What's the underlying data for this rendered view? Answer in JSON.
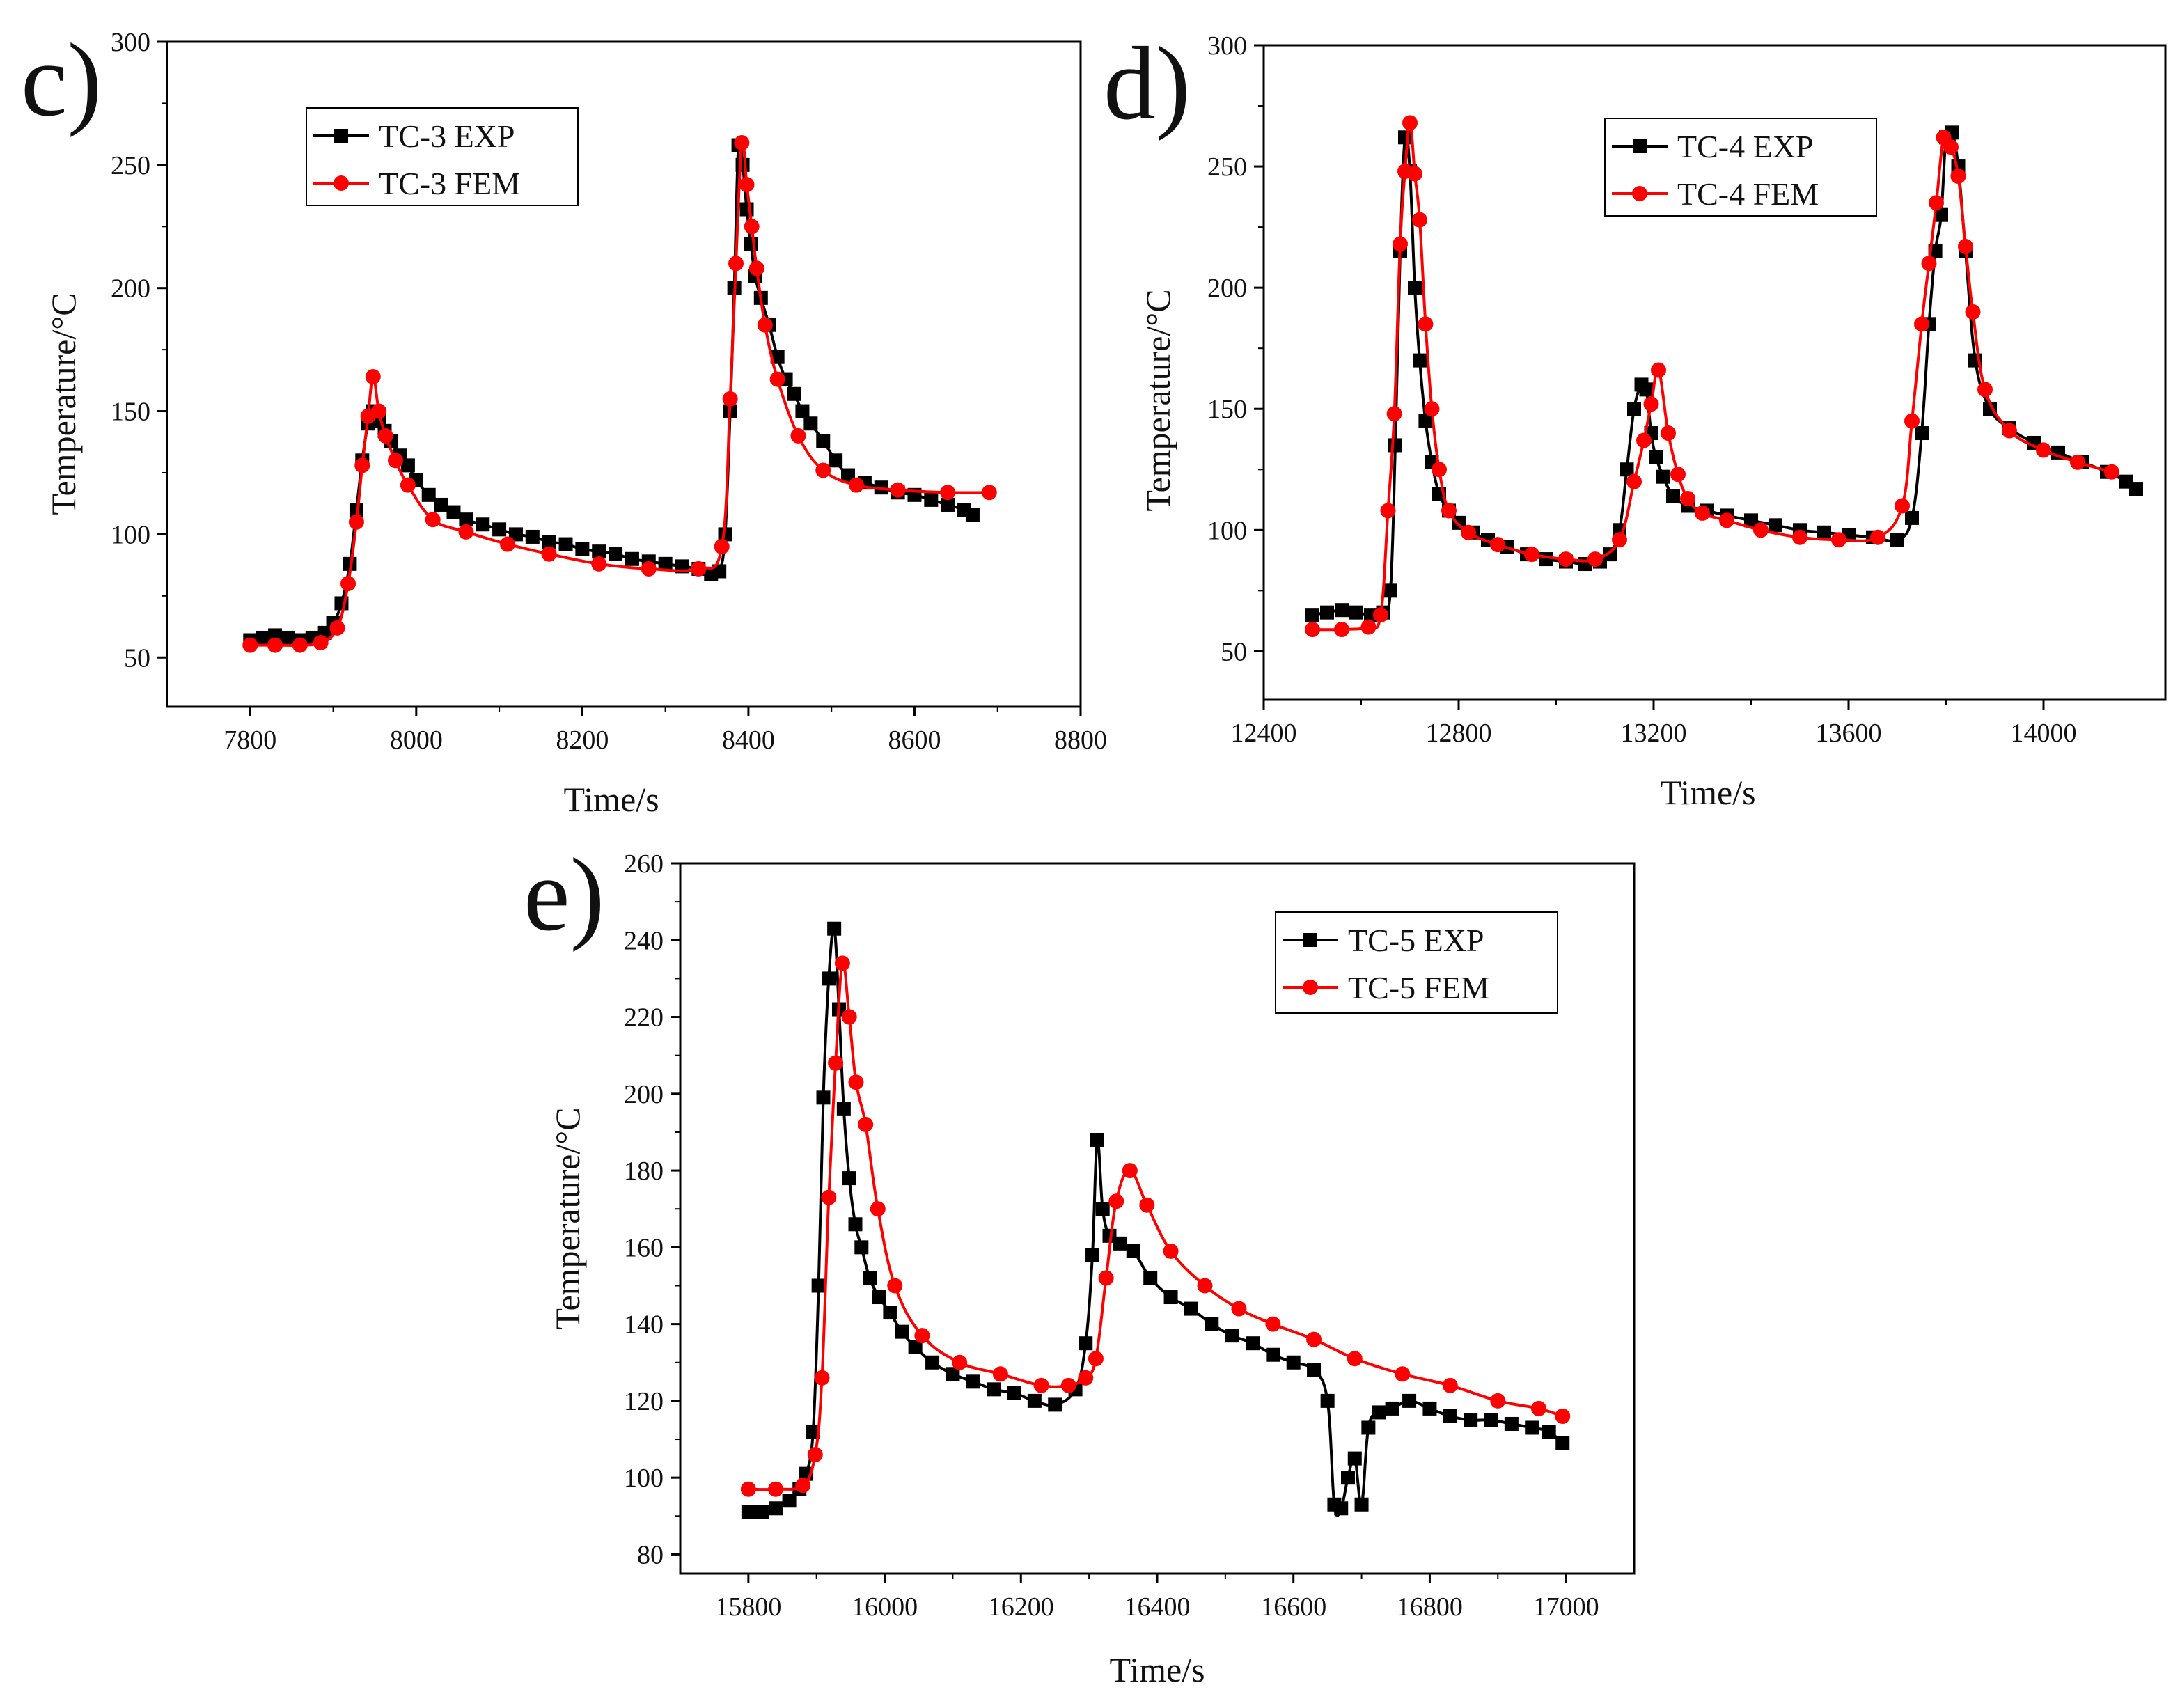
{
  "chart_data": [
    {
      "type": "line",
      "panel_label": "c)",
      "xlabel": "Time/s",
      "ylabel": "Temperature/°C",
      "xlim": [
        7700,
        8800
      ],
      "ylim": [
        30,
        300
      ],
      "xticks": [
        7800,
        8000,
        8200,
        8400,
        8600,
        8800
      ],
      "yticks": [
        50,
        100,
        150,
        200,
        250,
        300
      ],
      "legend_position": "top-left",
      "series": [
        {
          "name": "TC-3 EXP",
          "color": "#000000",
          "marker": "square",
          "x": [
            7800,
            7815,
            7830,
            7845,
            7860,
            7875,
            7890,
            7900,
            7910,
            7920,
            7928,
            7935,
            7942,
            7948,
            7955,
            7962,
            7970,
            7980,
            7990,
            8000,
            8015,
            8030,
            8045,
            8060,
            8080,
            8100,
            8120,
            8140,
            8160,
            8180,
            8200,
            8220,
            8240,
            8260,
            8280,
            8300,
            8320,
            8340,
            8355,
            8365,
            8372,
            8378,
            8383,
            8388,
            8393,
            8398,
            8403,
            8408,
            8415,
            8425,
            8435,
            8445,
            8455,
            8465,
            8475,
            8490,
            8505,
            8520,
            8540,
            8560,
            8580,
            8600,
            8620,
            8640,
            8660,
            8670
          ],
          "y": [
            57,
            58,
            59,
            58,
            57,
            58,
            60,
            64,
            72,
            88,
            110,
            130,
            145,
            150,
            146,
            142,
            138,
            132,
            128,
            122,
            116,
            112,
            109,
            106,
            104,
            102,
            100,
            99,
            97,
            96,
            94,
            93,
            92,
            90,
            89,
            88,
            87,
            86,
            84,
            85,
            100,
            150,
            200,
            258,
            250,
            232,
            218,
            205,
            196,
            185,
            172,
            163,
            157,
            150,
            145,
            138,
            130,
            124,
            121,
            119,
            117,
            116,
            114,
            112,
            110,
            108
          ]
        },
        {
          "name": "TC-3 FEM",
          "color": "#ff0000",
          "marker": "circle",
          "x": [
            7800,
            7830,
            7860,
            7885,
            7905,
            7918,
            7928,
            7935,
            7942,
            7948,
            7955,
            7963,
            7975,
            7990,
            8020,
            8060,
            8110,
            8160,
            8220,
            8280,
            8340,
            8368,
            8378,
            8385,
            8392,
            8398,
            8404,
            8410,
            8420,
            8435,
            8460,
            8490,
            8530,
            8580,
            8640,
            8690
          ],
          "y": [
            55,
            55,
            55,
            56,
            62,
            80,
            105,
            128,
            148,
            164,
            150,
            140,
            130,
            120,
            106,
            101,
            96,
            92,
            88,
            86,
            86,
            95,
            155,
            210,
            259,
            242,
            225,
            208,
            185,
            163,
            140,
            126,
            120,
            118,
            117,
            117
          ]
        }
      ]
    },
    {
      "type": "line",
      "panel_label": "d)",
      "xlabel": "Time/s",
      "ylabel": "Temperature/°C",
      "xlim": [
        12400,
        14250
      ],
      "ylim": [
        30,
        300
      ],
      "xticks": [
        12400,
        12800,
        13200,
        13600,
        14000
      ],
      "yticks": [
        50,
        100,
        150,
        200,
        250,
        300
      ],
      "legend_position": "top-right",
      "series": [
        {
          "name": "TC-4 EXP",
          "color": "#000000",
          "marker": "square",
          "x": [
            12500,
            12530,
            12560,
            12590,
            12620,
            12645,
            12660,
            12670,
            12680,
            12690,
            12700,
            12710,
            12720,
            12732,
            12745,
            12760,
            12780,
            12800,
            12830,
            12860,
            12900,
            12940,
            12980,
            13020,
            13060,
            13090,
            13110,
            13130,
            13145,
            13160,
            13175,
            13185,
            13195,
            13205,
            13220,
            13240,
            13270,
            13310,
            13350,
            13400,
            13450,
            13500,
            13550,
            13600,
            13650,
            13700,
            13730,
            13750,
            13765,
            13778,
            13790,
            13800,
            13812,
            13825,
            13840,
            13860,
            13890,
            13930,
            13980,
            14030,
            14080,
            14130,
            14170,
            14190
          ],
          "y": [
            65,
            66,
            67,
            66,
            65,
            66,
            75,
            135,
            215,
            262,
            248,
            200,
            170,
            145,
            128,
            115,
            108,
            103,
            99,
            96,
            93,
            90,
            88,
            87,
            86,
            87,
            90,
            100,
            125,
            150,
            160,
            158,
            140,
            130,
            122,
            114,
            110,
            108,
            106,
            104,
            102,
            100,
            99,
            98,
            97,
            96,
            105,
            140,
            185,
            215,
            230,
            262,
            264,
            250,
            215,
            170,
            150,
            142,
            136,
            132,
            128,
            124,
            120,
            117
          ]
        },
        {
          "name": "TC-4 FEM",
          "color": "#ff0000",
          "marker": "circle",
          "x": [
            12500,
            12560,
            12615,
            12640,
            12655,
            12668,
            12680,
            12690,
            12700,
            12710,
            12720,
            12732,
            12745,
            12760,
            12780,
            12820,
            12880,
            12950,
            13020,
            13080,
            13130,
            13160,
            13180,
            13195,
            13210,
            13230,
            13250,
            13270,
            13300,
            13350,
            13420,
            13500,
            13580,
            13660,
            13710,
            13730,
            13750,
            13765,
            13780,
            13795,
            13810,
            13825,
            13840,
            13855,
            13880,
            13930,
            14000,
            14070,
            14140
          ],
          "y": [
            59,
            59,
            60,
            65,
            108,
            148,
            218,
            248,
            268,
            247,
            228,
            185,
            150,
            125,
            108,
            99,
            94,
            90,
            88,
            88,
            96,
            120,
            137,
            152,
            166,
            140,
            123,
            113,
            107,
            104,
            100,
            97,
            96,
            97,
            110,
            145,
            185,
            210,
            235,
            262,
            258,
            246,
            217,
            190,
            158,
            141,
            133,
            128,
            124
          ]
        }
      ]
    },
    {
      "type": "line",
      "panel_label": "e)",
      "xlabel": "Time/s",
      "ylabel": "Temperature/°C",
      "xlim": [
        15700,
        17100
      ],
      "ylim": [
        75,
        260
      ],
      "xticks": [
        15800,
        16000,
        16200,
        16400,
        16600,
        16800,
        17000
      ],
      "yticks": [
        80,
        100,
        120,
        140,
        160,
        180,
        200,
        220,
        240,
        260
      ],
      "legend_position": "top-right",
      "series": [
        {
          "name": "TC-5 EXP",
          "color": "#000000",
          "marker": "square",
          "x": [
            15800,
            15820,
            15840,
            15860,
            15875,
            15885,
            15895,
            15903,
            15910,
            15918,
            15926,
            15933,
            15940,
            15948,
            15957,
            15966,
            15978,
            15992,
            16008,
            16025,
            16045,
            16070,
            16100,
            16130,
            16160,
            16190,
            16220,
            16250,
            16280,
            16295,
            16305,
            16312,
            16320,
            16330,
            16345,
            16365,
            16390,
            16420,
            16450,
            16480,
            16510,
            16540,
            16570,
            16600,
            16630,
            16650,
            16660,
            16670,
            16680,
            16690,
            16700,
            16710,
            16725,
            16745,
            16770,
            16800,
            16830,
            16860,
            16890,
            16920,
            16950,
            16975,
            16995
          ],
          "y": [
            91,
            91,
            92,
            94,
            97,
            101,
            112,
            150,
            199,
            230,
            243,
            222,
            196,
            178,
            166,
            160,
            152,
            147,
            143,
            138,
            134,
            130,
            127,
            125,
            123,
            122,
            120,
            119,
            123,
            135,
            158,
            188,
            170,
            163,
            161,
            159,
            152,
            147,
            144,
            140,
            137,
            135,
            132,
            130,
            128,
            120,
            93,
            92,
            100,
            105,
            93,
            113,
            117,
            118,
            120,
            118,
            116,
            115,
            115,
            114,
            113,
            112,
            109
          ]
        },
        {
          "name": "TC-5 FEM",
          "color": "#ff0000",
          "marker": "circle",
          "x": [
            15800,
            15840,
            15880,
            15898,
            15908,
            15918,
            15928,
            15938,
            15948,
            15958,
            15972,
            15990,
            16015,
            16055,
            16110,
            16170,
            16230,
            16270,
            16295,
            16310,
            16325,
            16340,
            16360,
            16385,
            16420,
            16470,
            16520,
            16570,
            16630,
            16690,
            16760,
            16830,
            16900,
            16960,
            16995
          ],
          "y": [
            97,
            97,
            98,
            106,
            126,
            173,
            208,
            234,
            220,
            203,
            192,
            170,
            150,
            137,
            130,
            127,
            124,
            124,
            126,
            131,
            152,
            172,
            180,
            171,
            159,
            150,
            144,
            140,
            136,
            131,
            127,
            124,
            120,
            118,
            116
          ]
        }
      ]
    }
  ]
}
